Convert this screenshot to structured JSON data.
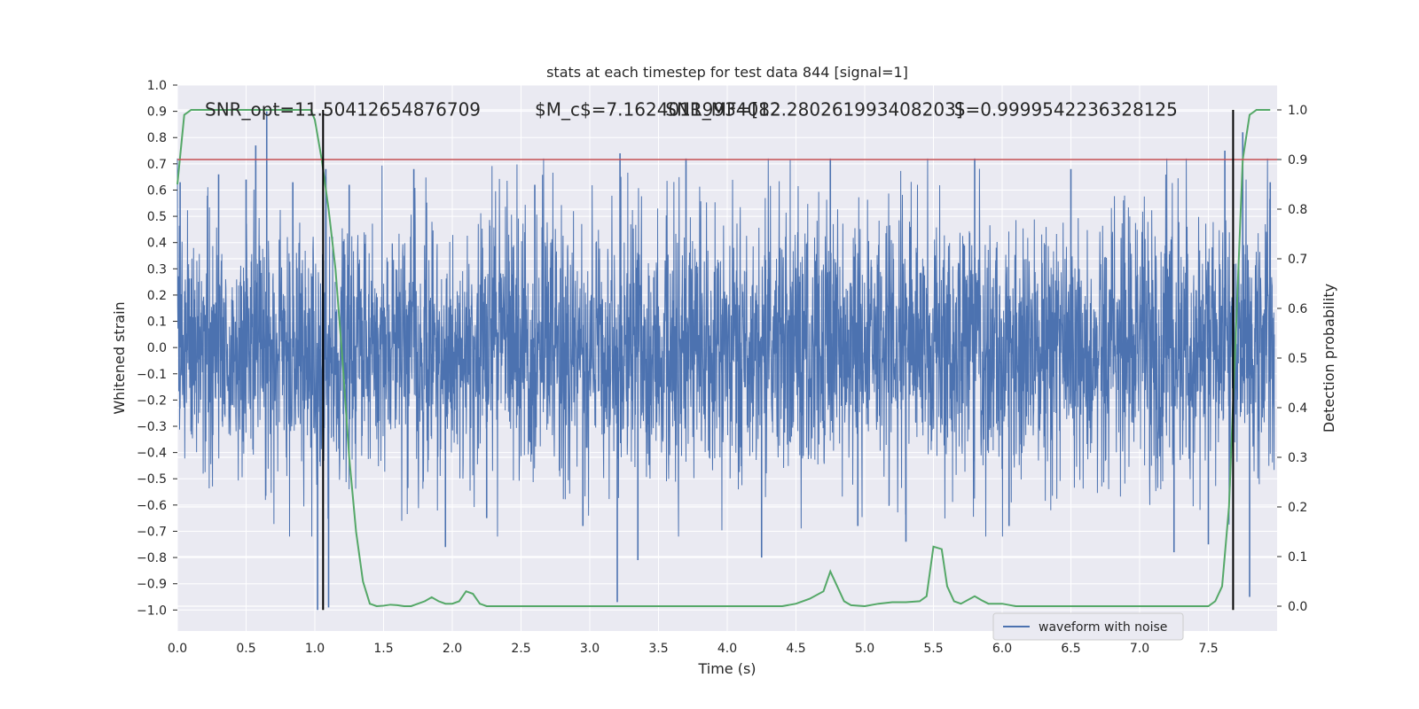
{
  "chart_data": {
    "type": "line",
    "title": "stats at each timestep for test data 844 [signal=1]",
    "xlabel": "Time (s)",
    "ylabel_left": "Whitened strain",
    "ylabel_right": "Detection probability",
    "xlim": [
      0.0,
      8.0
    ],
    "ylim_left": [
      -1.08,
      1.0
    ],
    "ylim_right": [
      -0.05,
      1.05
    ],
    "x_ticks": [
      "0.0",
      "0.5",
      "1.0",
      "1.5",
      "2.0",
      "2.5",
      "3.0",
      "3.5",
      "4.0",
      "4.5",
      "5.0",
      "5.5",
      "6.0",
      "6.5",
      "7.0",
      "7.5"
    ],
    "y_left_ticks": [
      "1.0",
      "0.9",
      "0.8",
      "0.7",
      "0.6",
      "0.5",
      "0.4",
      "0.3",
      "0.2",
      "0.1",
      "0.0",
      "−0.1",
      "−0.2",
      "−0.3",
      "−0.4",
      "−0.5",
      "−0.6",
      "−0.7",
      "−0.8",
      "−0.9",
      "−1.0"
    ],
    "y_right_ticks": [
      "1.0",
      "0.9",
      "0.8",
      "0.7",
      "0.6",
      "0.5",
      "0.4",
      "0.3",
      "0.2",
      "0.1",
      "0.0"
    ],
    "grid": true,
    "legend": {
      "placement": "lower-right",
      "entries": [
        "waveform with noise"
      ]
    },
    "annotations": [
      {
        "text": "SNR_opt=11.50412654876709",
        "x": 0.2,
        "y": 0.91
      },
      {
        "text": "$M_c$=7.16240119934082",
        "x": 2.6,
        "y": 0.91
      },
      {
        "text": "SNR_MF=[12.280261993408203]",
        "x": 3.55,
        "y": 0.91
      },
      {
        "text": "S=0.9999542236328125",
        "x": 5.65,
        "y": 0.91
      }
    ],
    "threshold_line": {
      "y_right": 0.9,
      "color": "#c44e52"
    },
    "vertical_lines": [
      1.06,
      7.68
    ],
    "series": [
      {
        "name": "waveform with noise",
        "axis": "left",
        "kind": "noise",
        "color": "#4c72b0",
        "typical_amplitude": 0.45,
        "spikes": [
          [
            0.02,
            0.63
          ],
          [
            0.3,
            0.66
          ],
          [
            0.5,
            0.64
          ],
          [
            0.57,
            0.77
          ],
          [
            0.65,
            0.9
          ],
          [
            0.84,
            0.63
          ],
          [
            1.02,
            -1.0
          ],
          [
            1.08,
            0.68
          ],
          [
            1.1,
            -0.99
          ],
          [
            1.25,
            0.62
          ],
          [
            1.72,
            0.68
          ],
          [
            1.95,
            -0.76
          ],
          [
            2.25,
            -0.65
          ],
          [
            2.6,
            0.62
          ],
          [
            2.95,
            -0.68
          ],
          [
            3.2,
            -0.97
          ],
          [
            3.22,
            0.74
          ],
          [
            3.35,
            -0.81
          ],
          [
            3.7,
            0.72
          ],
          [
            4.25,
            -0.8
          ],
          [
            4.75,
            0.72
          ],
          [
            4.95,
            -0.68
          ],
          [
            5.3,
            -0.74
          ],
          [
            5.8,
            0.72
          ],
          [
            6.05,
            -0.68
          ],
          [
            6.5,
            0.68
          ],
          [
            7.25,
            -0.78
          ],
          [
            7.5,
            -0.75
          ],
          [
            7.62,
            0.75
          ],
          [
            7.75,
            0.82
          ],
          [
            7.8,
            -0.95
          ],
          [
            7.95,
            0.63
          ]
        ]
      },
      {
        "name": "",
        "axis": "right",
        "kind": "line",
        "color": "#55a868",
        "x": [
          0.0,
          0.05,
          0.1,
          0.15,
          0.2,
          0.3,
          0.4,
          0.5,
          0.6,
          0.7,
          0.8,
          0.9,
          0.97,
          1.0,
          1.05,
          1.1,
          1.15,
          1.2,
          1.25,
          1.3,
          1.35,
          1.4,
          1.45,
          1.5,
          1.55,
          1.6,
          1.65,
          1.7,
          1.75,
          1.8,
          1.85,
          1.9,
          1.95,
          2.0,
          2.05,
          2.1,
          2.15,
          2.2,
          2.25,
          2.3,
          2.4,
          2.5,
          2.6,
          2.7,
          2.8,
          2.9,
          3.0,
          3.1,
          3.2,
          3.3,
          3.4,
          3.5,
          3.6,
          3.7,
          3.8,
          3.9,
          4.0,
          4.1,
          4.2,
          4.3,
          4.4,
          4.5,
          4.6,
          4.7,
          4.75,
          4.8,
          4.85,
          4.9,
          5.0,
          5.1,
          5.2,
          5.3,
          5.4,
          5.45,
          5.5,
          5.56,
          5.6,
          5.65,
          5.7,
          5.8,
          5.85,
          5.9,
          6.0,
          6.1,
          6.2,
          6.3,
          6.4,
          6.5,
          6.6,
          6.7,
          6.8,
          6.9,
          7.0,
          7.1,
          7.2,
          7.3,
          7.4,
          7.5,
          7.55,
          7.6,
          7.65,
          7.7,
          7.75,
          7.8,
          7.85,
          7.9,
          7.95
        ],
        "y": [
          0.85,
          0.99,
          1.0,
          1.0,
          1.0,
          1.0,
          1.0,
          1.0,
          1.0,
          1.0,
          1.0,
          1.0,
          1.0,
          0.98,
          0.9,
          0.8,
          0.68,
          0.5,
          0.3,
          0.15,
          0.05,
          0.005,
          0.0,
          0.001,
          0.003,
          0.002,
          0.0,
          0.0,
          0.005,
          0.01,
          0.018,
          0.01,
          0.005,
          0.005,
          0.01,
          0.03,
          0.025,
          0.005,
          0.0,
          0.0,
          0.0,
          0.0,
          0.0,
          0.0,
          0.0,
          0.0,
          0.0,
          0.0,
          0.0,
          0.0,
          0.0,
          0.0,
          0.0,
          0.0,
          0.0,
          0.0,
          0.0,
          0.0,
          0.0,
          0.0,
          0.0,
          0.005,
          0.015,
          0.03,
          0.07,
          0.04,
          0.01,
          0.002,
          0.0,
          0.005,
          0.008,
          0.008,
          0.01,
          0.02,
          0.12,
          0.115,
          0.04,
          0.01,
          0.005,
          0.02,
          0.012,
          0.005,
          0.005,
          0.0,
          0.0,
          0.0,
          0.0,
          0.0,
          0.0,
          0.0,
          0.0,
          0.0,
          0.0,
          0.0,
          0.0,
          0.0,
          0.0,
          0.0,
          0.01,
          0.04,
          0.2,
          0.55,
          0.9,
          0.99,
          1.0,
          1.0,
          1.0
        ]
      }
    ]
  }
}
